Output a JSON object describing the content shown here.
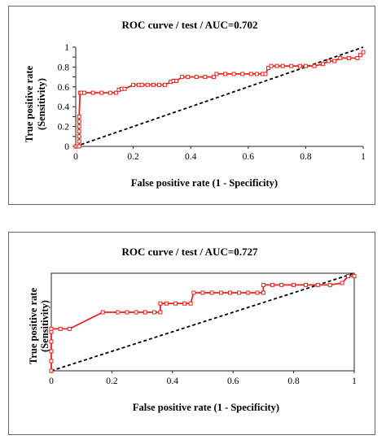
{
  "chart_data": [
    {
      "type": "line",
      "title": "ROC curve / test / AUC=0.702",
      "xlabel": "False positive rate (1 - Specificity)",
      "ylabel": [
        "True positive rate",
        "(Sensitivity)"
      ],
      "xlim": [
        0,
        1
      ],
      "ylim": [
        0,
        1
      ],
      "x_ticks": [
        "0",
        "0.2",
        "0.4",
        "0.6",
        "0.8",
        "1"
      ],
      "y_ticks": [
        "0",
        "0.1",
        "0.2",
        "0.3",
        "0.4",
        "0.5",
        "0.6",
        "0.7",
        "0.8",
        "0.9",
        "1"
      ],
      "y_tick_labels": [
        "0",
        "0.2",
        "0.4",
        "0.6",
        "0.8",
        "1"
      ],
      "series": [
        {
          "color": "#e8231f",
          "marker": "square",
          "x": [
            0,
            0.006,
            0.012,
            0.012,
            0.012,
            0.012,
            0.012,
            0.012,
            0.012,
            0.015,
            0.02,
            0.03,
            0.06,
            0.09,
            0.12,
            0.14,
            0.15,
            0.16,
            0.17,
            0.2,
            0.22,
            0.23,
            0.25,
            0.27,
            0.29,
            0.31,
            0.33,
            0.34,
            0.35,
            0.37,
            0.39,
            0.42,
            0.45,
            0.48,
            0.49,
            0.52,
            0.55,
            0.58,
            0.61,
            0.63,
            0.65,
            0.66,
            0.67,
            0.68,
            0.7,
            0.72,
            0.75,
            0.78,
            0.8,
            0.83,
            0.86,
            0.88,
            0.9,
            0.92,
            0.95,
            0.98,
            0.99,
            1.0
          ],
          "y": [
            0,
            0,
            0,
            0.05,
            0.1,
            0.15,
            0.2,
            0.25,
            0.3,
            0.54,
            0.54,
            0.54,
            0.54,
            0.54,
            0.54,
            0.54,
            0.57,
            0.58,
            0.58,
            0.62,
            0.62,
            0.62,
            0.62,
            0.62,
            0.62,
            0.62,
            0.65,
            0.66,
            0.66,
            0.7,
            0.7,
            0.7,
            0.7,
            0.7,
            0.73,
            0.73,
            0.73,
            0.73,
            0.73,
            0.73,
            0.73,
            0.73,
            0.79,
            0.81,
            0.81,
            0.81,
            0.81,
            0.81,
            0.81,
            0.81,
            0.83,
            0.86,
            0.86,
            0.89,
            0.89,
            0.89,
            0.92,
            0.95
          ]
        }
      ],
      "diagonal": {
        "color": "#000000",
        "style": "dashed",
        "x": [
          0,
          1
        ],
        "y": [
          0,
          1
        ]
      },
      "grid": false
    },
    {
      "type": "line",
      "title": "ROC curve / test / AUC=0.727",
      "xlabel": "False positive rate (1 - Specificity)",
      "ylabel": [
        "True positive rate",
        "(Sensitivity)"
      ],
      "xlim": [
        0,
        1
      ],
      "ylim": [
        0,
        1
      ],
      "x_ticks": [
        "0",
        "0.2",
        "0.4",
        "0.6",
        "0.8",
        "1"
      ],
      "y_tick_labels": [],
      "series": [
        {
          "color": "#e8231f",
          "marker": "square",
          "x": [
            0,
            0,
            0,
            0,
            0,
            0,
            0.03,
            0.06,
            0.17,
            0.22,
            0.25,
            0.28,
            0.31,
            0.34,
            0.36,
            0.36,
            0.38,
            0.41,
            0.44,
            0.46,
            0.47,
            0.5,
            0.53,
            0.56,
            0.59,
            0.62,
            0.65,
            0.68,
            0.7,
            0.7,
            0.73,
            0.76,
            0.8,
            0.84,
            0.88,
            0.92,
            0.96,
            0.98,
            1.0
          ],
          "y": [
            0,
            0.1,
            0.2,
            0.3,
            0.4,
            0.43,
            0.43,
            0.43,
            0.6,
            0.6,
            0.6,
            0.6,
            0.6,
            0.6,
            0.6,
            0.69,
            0.69,
            0.69,
            0.69,
            0.69,
            0.8,
            0.8,
            0.8,
            0.8,
            0.8,
            0.8,
            0.8,
            0.8,
            0.8,
            0.88,
            0.88,
            0.88,
            0.88,
            0.88,
            0.88,
            0.88,
            0.9,
            0.97,
            0.97
          ]
        }
      ],
      "diagonal": {
        "color": "#000000",
        "style": "dashed",
        "x": [
          0,
          1
        ],
        "y": [
          0,
          1
        ]
      },
      "grid": false
    }
  ]
}
